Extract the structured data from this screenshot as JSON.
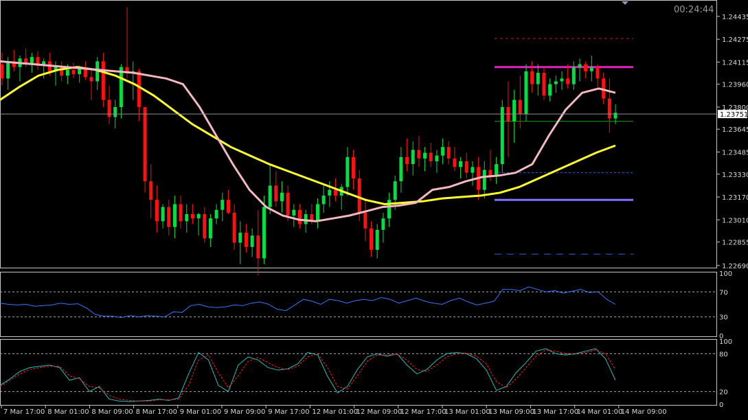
{
  "timer": "00:24:44",
  "current_price_label": "1.23751",
  "colors": {
    "background": "#000000",
    "bull_candle": "#00e040",
    "bear_candle": "#ff1010",
    "ma_fast": "#f4b8c0",
    "ma_slow": "#ffff30",
    "resistance": "#e020c0",
    "support": "#8070ff",
    "rsi": "#3b74ff",
    "stoch_main": "#20c0c0",
    "stoch_signal": "#ff2020",
    "level_lines": "#2b5fd8",
    "target_upper": "#c02020",
    "ref_line": "#20a020",
    "axis_text": "#d8d8d8"
  },
  "chart_data": [
    {
      "type": "candlestick",
      "price_axis": {
        "ticks": [
          "1.24435",
          "1.24275",
          "1.24115",
          "1.23960",
          "1.23800",
          "1.23645",
          "1.23485",
          "1.23330",
          "1.23170",
          "1.23010",
          "1.22855",
          "1.22690"
        ],
        "ylim": [
          1.2268,
          1.2454
        ]
      },
      "time_axis": {
        "labels": [
          "7 Mar 17:00",
          "8 Mar 01:00",
          "8 Mar 09:00",
          "8 Mar 17:00",
          "9 Mar 01:00",
          "9 Mar 09:00",
          "9 Mar 17:00",
          "12 Mar 01:00",
          "12 Mar 09:00",
          "12 Mar 17:00",
          "13 Mar 01:00",
          "13 Mar 09:00",
          "13 Mar 17:00",
          "14 Mar 01:00",
          "14 Mar 09:00"
        ]
      },
      "candles": [
        [
          1.241,
          1.2418,
          1.2395,
          1.24
        ],
        [
          1.24,
          1.2415,
          1.2392,
          1.2412
        ],
        [
          1.2412,
          1.242,
          1.2405,
          1.2408
        ],
        [
          1.2408,
          1.2416,
          1.2398,
          1.2414
        ],
        [
          1.2414,
          1.2421,
          1.2408,
          1.241
        ],
        [
          1.241,
          1.2418,
          1.2404,
          1.2415
        ],
        [
          1.2415,
          1.2419,
          1.2406,
          1.2409
        ],
        [
          1.2409,
          1.2414,
          1.24,
          1.2412
        ],
        [
          1.2412,
          1.2418,
          1.2402,
          1.2405
        ],
        [
          1.2405,
          1.2412,
          1.2395,
          1.2408
        ],
        [
          1.2408,
          1.2412,
          1.2398,
          1.2402
        ],
        [
          1.2402,
          1.241,
          1.2396,
          1.2406
        ],
        [
          1.2406,
          1.2411,
          1.24,
          1.2403
        ],
        [
          1.2403,
          1.2409,
          1.2397,
          1.2407
        ],
        [
          1.2407,
          1.2412,
          1.2399,
          1.2401
        ],
        [
          1.2401,
          1.2406,
          1.2385,
          1.2398
        ],
        [
          1.2398,
          1.2415,
          1.2392,
          1.2412
        ],
        [
          1.2412,
          1.2418,
          1.238,
          1.2385
        ],
        [
          1.2385,
          1.2395,
          1.2368,
          1.2373
        ],
        [
          1.2373,
          1.2385,
          1.2365,
          1.238
        ],
        [
          1.238,
          1.241,
          1.2372,
          1.2408
        ],
        [
          1.2408,
          1.245,
          1.24,
          1.2404
        ],
        [
          1.2404,
          1.2412,
          1.2385,
          1.2405
        ],
        [
          1.2405,
          1.2407,
          1.237,
          1.238
        ],
        [
          1.238,
          1.238,
          1.232,
          1.2328
        ],
        [
          1.2328,
          1.234,
          1.2302,
          1.2315
        ],
        [
          1.2315,
          1.2325,
          1.2292,
          1.23
        ],
        [
          1.23,
          1.2312,
          1.2295,
          1.231
        ],
        [
          1.231,
          1.2315,
          1.229,
          1.2296
        ],
        [
          1.2296,
          1.2318,
          1.2288,
          1.2312
        ],
        [
          1.2312,
          1.2318,
          1.2295,
          1.23
        ],
        [
          1.23,
          1.2312,
          1.2292,
          1.2305
        ],
        [
          1.2305,
          1.2312,
          1.2298,
          1.2302
        ],
        [
          1.2302,
          1.2306,
          1.229,
          1.2305
        ],
        [
          1.2305,
          1.231,
          1.2285,
          1.2288
        ],
        [
          1.2288,
          1.2305,
          1.2282,
          1.2302
        ],
        [
          1.2302,
          1.2312,
          1.2298,
          1.2308
        ],
        [
          1.2308,
          1.232,
          1.23,
          1.2315
        ],
        [
          1.2315,
          1.2322,
          1.2305,
          1.2306
        ],
        [
          1.2306,
          1.2312,
          1.228,
          1.2285
        ],
        [
          1.2285,
          1.23,
          1.227,
          1.2292
        ],
        [
          1.2292,
          1.2298,
          1.2278,
          1.2282
        ],
        [
          1.2282,
          1.2295,
          1.2275,
          1.229
        ],
        [
          1.229,
          1.2308,
          1.2262,
          1.2274
        ],
        [
          1.2274,
          1.2318,
          1.227,
          1.231
        ],
        [
          1.231,
          1.234,
          1.2305,
          1.2325
        ],
        [
          1.2325,
          1.2335,
          1.231,
          1.2314
        ],
        [
          1.2314,
          1.2328,
          1.2306,
          1.232
        ],
        [
          1.232,
          1.2325,
          1.23,
          1.2304
        ],
        [
          1.2304,
          1.2312,
          1.2296,
          1.2308
        ],
        [
          1.2308,
          1.2312,
          1.2295,
          1.2298
        ],
        [
          1.2298,
          1.2308,
          1.2292,
          1.2305
        ],
        [
          1.2305,
          1.2312,
          1.2298,
          1.23
        ],
        [
          1.23,
          1.2316,
          1.2295,
          1.2312
        ],
        [
          1.2312,
          1.2325,
          1.2306,
          1.2318
        ],
        [
          1.2318,
          1.2328,
          1.231,
          1.2322
        ],
        [
          1.2322,
          1.233,
          1.2314,
          1.2318
        ],
        [
          1.2318,
          1.2326,
          1.2308,
          1.2324
        ],
        [
          1.2324,
          1.2352,
          1.2318,
          1.2345
        ],
        [
          1.2345,
          1.235,
          1.2322,
          1.233
        ],
        [
          1.233,
          1.2336,
          1.23,
          1.2306
        ],
        [
          1.2306,
          1.2316,
          1.2286,
          1.2295
        ],
        [
          1.2295,
          1.23,
          1.2275,
          1.228
        ],
        [
          1.228,
          1.2298,
          1.2274,
          1.2294
        ],
        [
          1.2294,
          1.2306,
          1.2285,
          1.2302
        ],
        [
          1.2302,
          1.232,
          1.2296,
          1.2315
        ],
        [
          1.2315,
          1.2332,
          1.2308,
          1.2328
        ],
        [
          1.2328,
          1.2352,
          1.232,
          1.2345
        ],
        [
          1.2345,
          1.2358,
          1.2335,
          1.234
        ],
        [
          1.234,
          1.2356,
          1.2332,
          1.235
        ],
        [
          1.235,
          1.236,
          1.2338,
          1.2344
        ],
        [
          1.2344,
          1.2352,
          1.2335,
          1.2348
        ],
        [
          1.2348,
          1.2355,
          1.2338,
          1.2342
        ],
        [
          1.2342,
          1.235,
          1.2334,
          1.2346
        ],
        [
          1.2346,
          1.2358,
          1.234,
          1.2352
        ],
        [
          1.2352,
          1.2356,
          1.234,
          1.2344
        ],
        [
          1.2344,
          1.2352,
          1.2335,
          1.2338
        ],
        [
          1.2338,
          1.2345,
          1.233,
          1.2342
        ],
        [
          1.2342,
          1.2348,
          1.233,
          1.2334
        ],
        [
          1.2334,
          1.2342,
          1.2325,
          1.2338
        ],
        [
          1.2338,
          1.2345,
          1.2315,
          1.2322
        ],
        [
          1.2322,
          1.2342,
          1.2316,
          1.2336
        ],
        [
          1.2336,
          1.235,
          1.2328,
          1.2332
        ],
        [
          1.2332,
          1.2345,
          1.2326,
          1.234
        ],
        [
          1.234,
          1.2385,
          1.2334,
          1.238
        ],
        [
          1.238,
          1.2398,
          1.2345,
          1.237
        ],
        [
          1.237,
          1.2392,
          1.2355,
          1.2385
        ],
        [
          1.2385,
          1.2402,
          1.2365,
          1.2375
        ],
        [
          1.2375,
          1.241,
          1.237,
          1.2405
        ],
        [
          1.2405,
          1.2412,
          1.239,
          1.2396
        ],
        [
          1.2396,
          1.241,
          1.2388,
          1.2404
        ],
        [
          1.2404,
          1.2408,
          1.2385,
          1.2388
        ],
        [
          1.2388,
          1.24,
          1.2384,
          1.2396
        ],
        [
          1.2396,
          1.2402,
          1.239,
          1.2398
        ],
        [
          1.2398,
          1.2405,
          1.2392,
          1.24
        ],
        [
          1.24,
          1.241,
          1.2393,
          1.2396
        ],
        [
          1.2396,
          1.2412,
          1.2392,
          1.2408
        ],
        [
          1.2408,
          1.2414,
          1.2398,
          1.241
        ],
        [
          1.241,
          1.2412,
          1.24,
          1.2405
        ],
        [
          1.2405,
          1.2416,
          1.2398,
          1.2408
        ],
        [
          1.2408,
          1.241,
          1.2394,
          1.24
        ],
        [
          1.24,
          1.2404,
          1.2382,
          1.2386
        ],
        [
          1.2386,
          1.24,
          1.2362,
          1.2372
        ],
        [
          1.2372,
          1.2382,
          1.2368,
          1.2376
        ]
      ],
      "ma_fast": [
        1.2412,
        1.2411,
        1.241,
        1.2409,
        1.2408,
        1.2407,
        1.2406,
        1.2405,
        1.2404,
        1.2402,
        1.24,
        1.2396,
        1.238,
        1.236,
        1.234,
        1.2322,
        1.231,
        1.2304,
        1.2301,
        1.23,
        1.2302,
        1.2304,
        1.2307,
        1.231,
        1.2311,
        1.2313,
        1.2322,
        1.2324,
        1.2328,
        1.2331,
        1.2332,
        1.2334,
        1.234,
        1.236,
        1.2378,
        1.239,
        1.2393,
        1.239
      ],
      "ma_slow": [
        1.2385,
        1.2394,
        1.2402,
        1.2406,
        1.2408,
        1.2406,
        1.2402,
        1.2396,
        1.2388,
        1.2378,
        1.2368,
        1.236,
        1.2352,
        1.2346,
        1.234,
        1.2335,
        1.233,
        1.2325,
        1.232,
        1.2315,
        1.2312,
        1.2313,
        1.2314,
        1.2316,
        1.2317,
        1.2318,
        1.232,
        1.2324,
        1.233,
        1.2336,
        1.2342,
        1.2348,
        1.2353
      ],
      "levels": {
        "upper_target": 1.2428,
        "resistance": 1.2408,
        "reference": 1.237,
        "pivot": 1.2334,
        "support": 1.2315,
        "lower_target": 1.2277
      },
      "current_price": 1.23751
    },
    {
      "type": "line",
      "indicator": "RSI",
      "y_ticks": [
        "100",
        "70",
        "30",
        "0"
      ],
      "levels": [
        70,
        30
      ],
      "ylim": [
        0,
        100
      ],
      "values": [
        52,
        50,
        49,
        50,
        47,
        48,
        49,
        52,
        50,
        51,
        44,
        34,
        31,
        31,
        29,
        32,
        30,
        32,
        31,
        30,
        38,
        37,
        48,
        50,
        46,
        45,
        46,
        49,
        48,
        52,
        54,
        50,
        42,
        40,
        49,
        58,
        55,
        50,
        58,
        56,
        52,
        56,
        58,
        56,
        61,
        58,
        52,
        56,
        60,
        55,
        52,
        50,
        56,
        60,
        54,
        49,
        52,
        55,
        74,
        74,
        72,
        78,
        74,
        70,
        72,
        68,
        71,
        74,
        69,
        70,
        58,
        50
      ]
    },
    {
      "type": "line",
      "indicator": "Stochastic",
      "y_ticks": [
        "100",
        "80",
        "20",
        "0"
      ],
      "levels": [
        80,
        20
      ],
      "ylim": [
        0,
        100
      ],
      "main": [
        30,
        40,
        52,
        58,
        60,
        62,
        58,
        38,
        42,
        20,
        28,
        8,
        5,
        4,
        5,
        6,
        8,
        6,
        10,
        48,
        82,
        70,
        30,
        20,
        62,
        75,
        70,
        58,
        54,
        56,
        64,
        82,
        78,
        44,
        18,
        28,
        55,
        75,
        80,
        76,
        80,
        62,
        48,
        55,
        70,
        80,
        82,
        80,
        72,
        54,
        22,
        28,
        50,
        66,
        84,
        88,
        80,
        78,
        80,
        84,
        88,
        72,
        38
      ],
      "signal": [
        28,
        38,
        48,
        55,
        58,
        60,
        60,
        45,
        40,
        28,
        26,
        14,
        8,
        6,
        5,
        5,
        7,
        7,
        8,
        30,
        70,
        78,
        50,
        26,
        45,
        68,
        74,
        66,
        58,
        55,
        60,
        75,
        80,
        58,
        28,
        24,
        45,
        68,
        78,
        78,
        79,
        70,
        55,
        52,
        62,
        75,
        80,
        81,
        76,
        64,
        36,
        26,
        40,
        58,
        76,
        86,
        84,
        80,
        79,
        82,
        86,
        80,
        55
      ]
    }
  ]
}
